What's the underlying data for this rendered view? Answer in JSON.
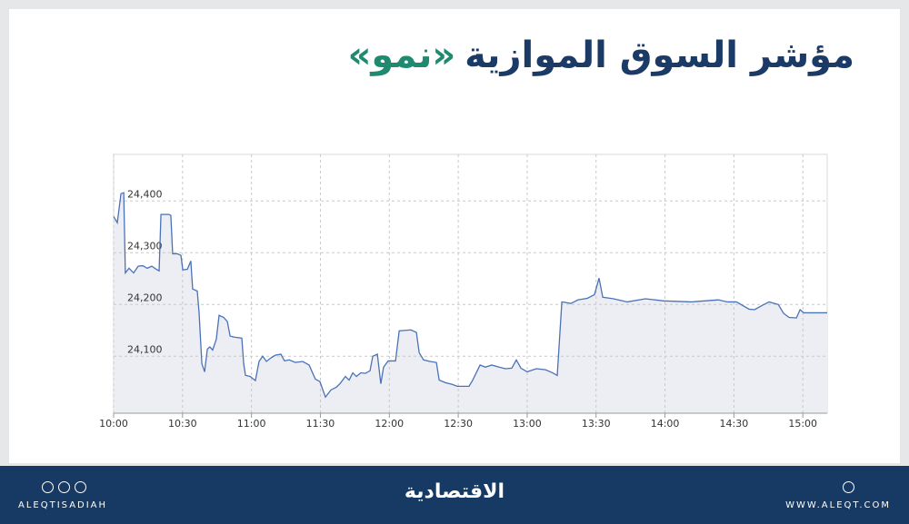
{
  "header": {
    "title": "مؤشر السوق الموازية",
    "title_highlight": "«نمو»"
  },
  "footer": {
    "left": "ALEQTISADIAH",
    "center": "الاقتصادية",
    "right": "WWW.ALEQT.COM"
  },
  "chart_data": {
    "type": "area",
    "color": "#4a72b8",
    "fill": "#eceef3",
    "grid": true,
    "x": [
      0,
      1.6,
      3.2,
      4.4,
      5.1,
      6.7,
      8.7,
      10.7,
      12.7,
      14.6,
      16.6,
      18.6,
      19.8,
      20.6,
      24.1,
      24.9,
      25.7,
      27.7,
      29.3,
      30.1,
      32.1,
      33.6,
      34.4,
      36.4,
      37.2,
      38.4,
      39.6,
      40.8,
      41.9,
      43.1,
      44.7,
      45.9,
      47.9,
      49.5,
      50.7,
      52.6,
      55.8,
      56.6,
      57.4,
      59.4,
      61.7,
      63.3,
      64.9,
      66.5,
      68.5,
      70.4,
      72.8,
      74.4,
      76.4,
      79.1,
      82.3,
      85.1,
      87.8,
      89.8,
      92.2,
      94.6,
      96.9,
      98.5,
      100.9,
      102.5,
      104.1,
      105.7,
      107.6,
      109.6,
      111.6,
      112.8,
      114.8,
      116.3,
      117.5,
      119.5,
      122.7,
      124.3,
      129.4,
      131.8,
      133.0,
      134.9,
      137.7,
      140.5,
      141.7,
      144.4,
      147.2,
      149.6,
      154.7,
      156.3,
      159.5,
      161.8,
      164.6,
      167.8,
      170.5,
      173.3,
      175.3,
      177.3,
      180.0,
      184.0,
      188.0,
      191.1,
      193.1,
      195.1,
      196.7,
      199.0,
      202.2,
      206.2,
      209.3,
      211.3,
      212.9,
      217.6,
      223.6,
      231.5,
      239.4,
      251.3,
      263.2,
      267.1,
      271.1,
      276.6,
      279.0,
      282.2,
      285.3,
      289.3,
      291.6,
      294.0,
      297.2,
      298.8,
      300.4,
      310.6
    ],
    "values": [
      24370,
      24358,
      24414,
      24416,
      24261,
      24270,
      24261,
      24274,
      24275,
      24270,
      24274,
      24268,
      24265,
      24374,
      24374,
      24372,
      24298,
      24298,
      24295,
      24267,
      24268,
      24284,
      24230,
      24226,
      24184,
      24086,
      24070,
      24114,
      24118,
      24112,
      24133,
      24179,
      24175,
      24167,
      24139,
      24137,
      24135,
      24086,
      24063,
      24061,
      24053,
      24090,
      24100,
      24090,
      24097,
      24102,
      24104,
      24091,
      24093,
      24088,
      24090,
      24083,
      24056,
      24051,
      24021,
      24035,
      24040,
      24047,
      24061,
      24054,
      24068,
      24061,
      24068,
      24067,
      24072,
      24100,
      24104,
      24047,
      24079,
      24091,
      24091,
      24149,
      24151,
      24146,
      24107,
      24093,
      24090,
      24088,
      24054,
      24049,
      24046,
      24042,
      24042,
      24054,
      24083,
      24079,
      24083,
      24079,
      24076,
      24077,
      24093,
      24077,
      24070,
      24076,
      24074,
      24068,
      24063,
      24205,
      24204,
      24202,
      24209,
      24212,
      24219,
      24251,
      24214,
      24211,
      24205,
      24211,
      24207,
      24205,
      24209,
      24205,
      24205,
      24191,
      24190,
      24198,
      24205,
      24200,
      24183,
      24175,
      24174,
      24190,
      24184,
      24184
    ],
    "xlim": [
      0,
      310.6
    ],
    "xticks": [
      {
        "value": 0,
        "label": "10:00"
      },
      {
        "value": 30,
        "label": "10:30"
      },
      {
        "value": 60,
        "label": "11:00"
      },
      {
        "value": 90,
        "label": "11:30"
      },
      {
        "value": 120,
        "label": "12:00"
      },
      {
        "value": 150,
        "label": "12:30"
      },
      {
        "value": 180,
        "label": "13:00"
      },
      {
        "value": 210,
        "label": "13:30"
      },
      {
        "value": 240,
        "label": "14:00"
      },
      {
        "value": 270,
        "label": "14:30"
      },
      {
        "value": 300,
        "label": "15:00"
      }
    ],
    "ylim": [
      23990,
      24490
    ],
    "yticks": [
      {
        "value": 24100,
        "label": "24,100"
      },
      {
        "value": 24200,
        "label": "24,200"
      },
      {
        "value": 24300,
        "label": "24,300"
      },
      {
        "value": 24400,
        "label": "24,400"
      }
    ]
  }
}
